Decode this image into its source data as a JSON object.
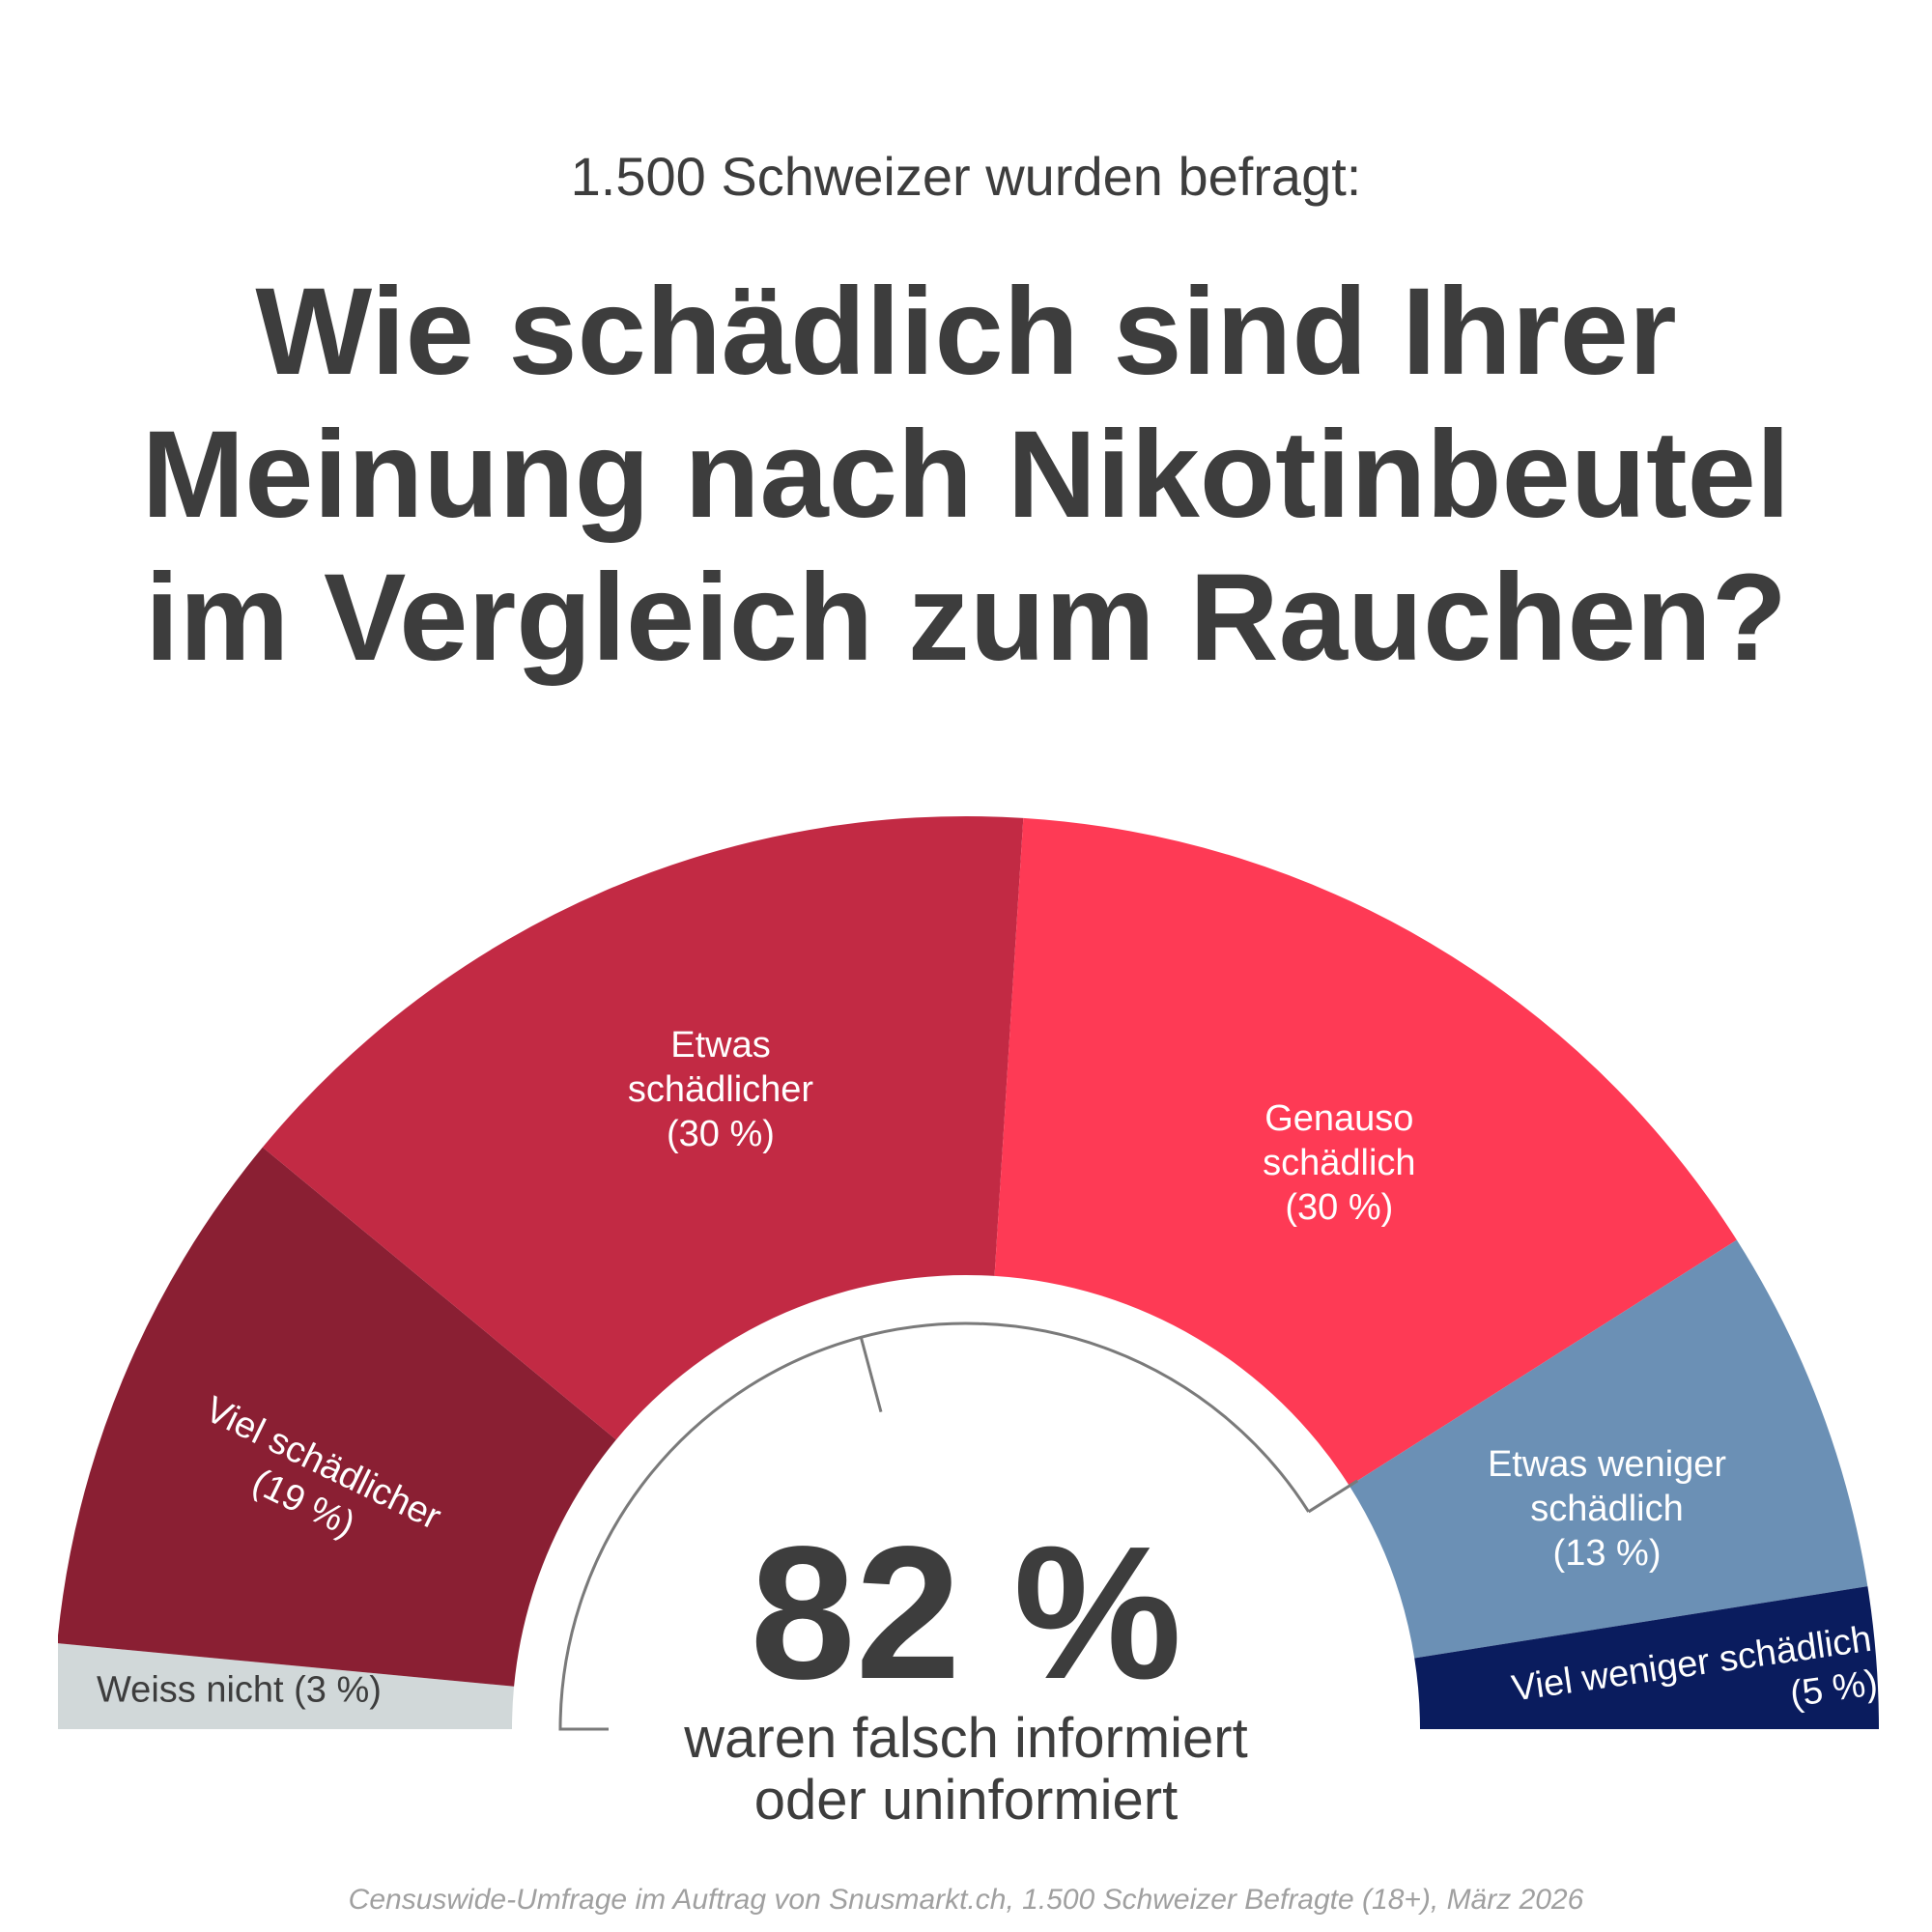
{
  "header": {
    "subtitle": "1.500 Schweizer wurden befragt:",
    "title_lines": [
      "Wie schädlich sind Ihrer",
      "Meinung nach Nikotinbeutel",
      "im Vergleich zum Rauchen?"
    ]
  },
  "chart_data": {
    "type": "pie",
    "variant": "semicircle-donut",
    "title": "Wie schädlich sind Ihrer Meinung nach Nikotinbeutel im Vergleich zum Rauchen?",
    "categories": [
      "Weiss nicht",
      "Viel schädlicher",
      "Etwas schädlicher",
      "Genauso schädlich",
      "Etwas weniger schädlich",
      "Viel weniger schädlich"
    ],
    "values": [
      3,
      19,
      30,
      30,
      13,
      5
    ],
    "unit": "%",
    "colors": [
      "#d1d8d9",
      "#8a1f33",
      "#c22a44",
      "#fe3a55",
      "#6b90b5",
      "#0a1c5e"
    ],
    "labels": [
      [
        "Weiss nicht (3 %)"
      ],
      [
        "Viel schädlicher",
        "(19 %)"
      ],
      [
        "Etwas",
        "schädlicher",
        "(30 %)"
      ],
      [
        "Genauso",
        "schädlich",
        "(30 %)"
      ],
      [
        "Etwas weniger",
        "schädlich",
        "(13 %)"
      ],
      [
        "Viel weniger schädlich",
        "(5 %)"
      ]
    ],
    "label_colors": [
      "#3d3d3d",
      "#ffffff",
      "#ffffff",
      "#ffffff",
      "#ffffff",
      "#ffffff"
    ],
    "highlight": {
      "value": "82 %",
      "caption_lines": [
        "waren falsch informiert",
        "oder uninformiert"
      ],
      "bracket_color": "#7a7a7a"
    }
  },
  "footer": {
    "source": "Censuswide-Umfrage im Auftrag von Snusmarkt.ch, 1.500 Schweizer Befragte (18+), März 2026"
  }
}
